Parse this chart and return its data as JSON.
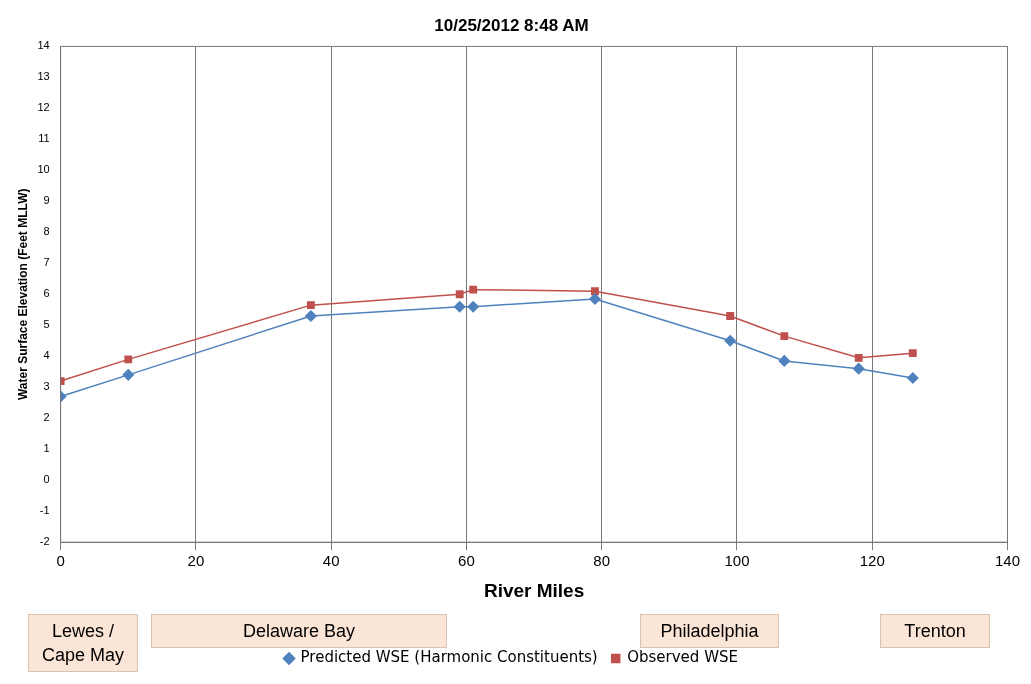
{
  "chart_data": {
    "type": "line",
    "title": "10/25/2012 8:48 AM",
    "xlabel": "River Miles",
    "ylabel": "Water Surface Elevation (Feet MLLW)",
    "xlim": [
      0,
      140
    ],
    "xticks": [
      0,
      20,
      40,
      60,
      80,
      100,
      120,
      140
    ],
    "ylim": [
      -2,
      14
    ],
    "yticks": [
      -2,
      -1,
      0,
      1,
      2,
      3,
      4,
      5,
      6,
      7,
      8,
      9,
      10,
      11,
      12,
      13,
      14
    ],
    "grid": "x",
    "legend": "bottom",
    "annotations": [
      "Lewes / Cape May",
      "Delaware Bay",
      "Philadelphia",
      "Trenton"
    ],
    "series": [
      {
        "name": "Predicted WSE (Harmonic Constituents)",
        "color": "#4f81bd",
        "marker": "diamond",
        "x": [
          0,
          10,
          37,
          59,
          61,
          79,
          99,
          107,
          118,
          126
        ],
        "values": [
          2.7,
          3.4,
          5.3,
          5.6,
          5.6,
          5.85,
          4.5,
          3.85,
          3.6,
          3.3
        ]
      },
      {
        "name": "Observed WSE",
        "color": "#c0504d",
        "marker": "square",
        "x": [
          0,
          10,
          37,
          59,
          61,
          79,
          99,
          107,
          118,
          126
        ],
        "values": [
          3.2,
          3.9,
          5.65,
          6.0,
          6.15,
          6.1,
          5.3,
          4.65,
          3.95,
          4.1
        ]
      }
    ]
  }
}
